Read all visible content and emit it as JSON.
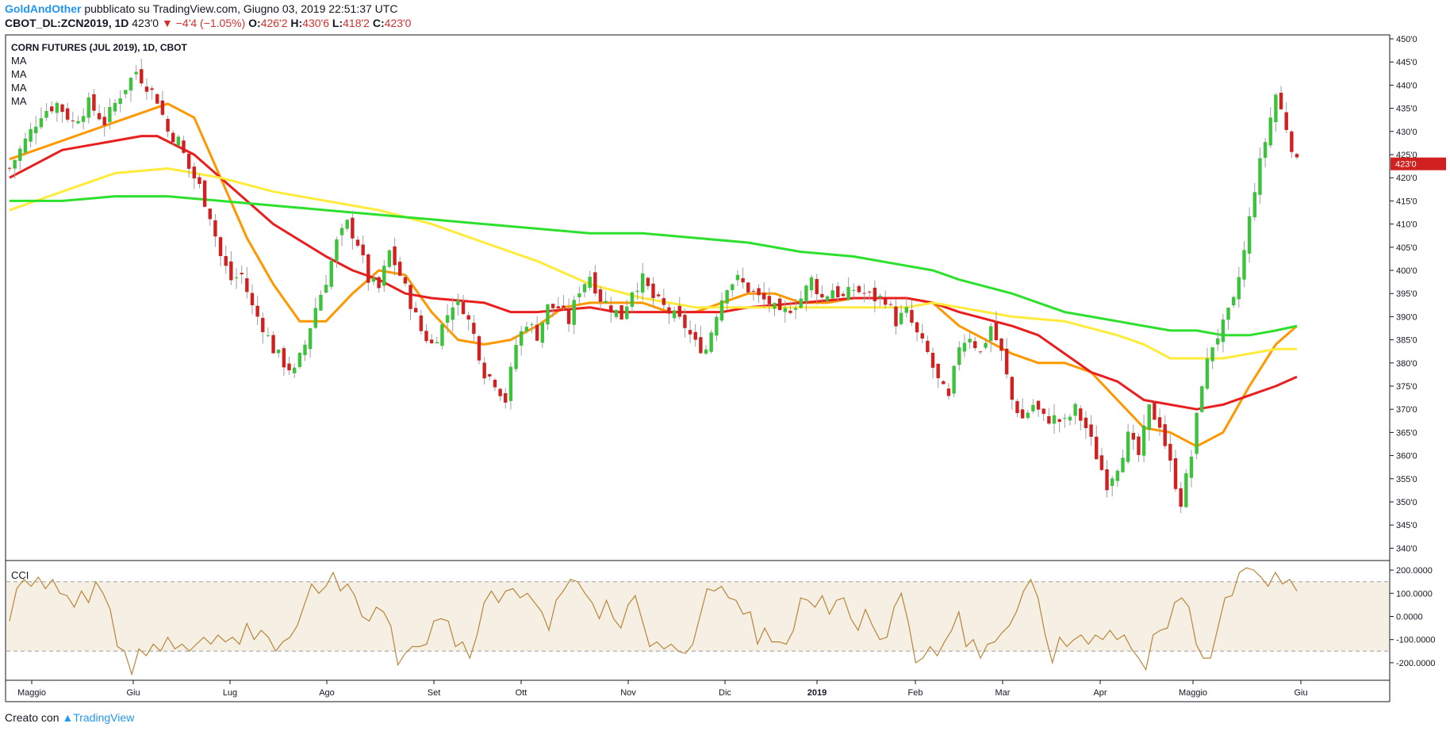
{
  "header": {
    "author": "GoldAndOther",
    "published": "pubblicato su TradingView.com, Giugno 03, 2019 22:51:37 UTC",
    "symbol": "CBOT_DL:ZCN2019, 1D",
    "last": "423'0",
    "arrow": "▼",
    "change": "−4'4 (−1.05%)",
    "o_label": "O:",
    "o_value": "426'2",
    "h_label": "H:",
    "h_value": "430'6",
    "l_label": "L:",
    "l_value": "418'2",
    "c_label": "C:",
    "c_value": "423'0"
  },
  "footer": {
    "made_with": "Creato con",
    "brand": "TradingView"
  },
  "chart_data": {
    "type": "candlestick",
    "title": "CORN FUTURES (JUL 2019), 1D, CBOT",
    "indicator_labels": [
      "MA",
      "MA",
      "MA",
      "MA"
    ],
    "price_axis": {
      "ticks": [
        "450'0",
        "445'0",
        "440'0",
        "435'0",
        "430'0",
        "425'0",
        "420'0",
        "415'0",
        "410'0",
        "405'0",
        "400'0",
        "395'0",
        "390'0",
        "385'0",
        "380'0",
        "375'0",
        "370'0",
        "365'0",
        "360'0",
        "355'0",
        "350'0",
        "345'0",
        "340'0"
      ],
      "range": [
        338,
        451
      ],
      "last_price_label": "423'0"
    },
    "time_axis": {
      "labels": [
        "Maggio",
        "Giu",
        "Lug",
        "Ago",
        "Set",
        "Ott",
        "Nov",
        "Dic",
        "2019",
        "Feb",
        "Mar",
        "Apr",
        "Maggio",
        "Giu"
      ],
      "bold": "2019"
    },
    "price_path": [
      [
        0,
        422
      ],
      [
        3,
        428
      ],
      [
        6,
        434
      ],
      [
        9,
        436
      ],
      [
        12,
        432
      ],
      [
        15,
        436
      ],
      [
        18,
        432
      ],
      [
        21,
        438
      ],
      [
        24,
        443
      ],
      [
        26,
        440
      ],
      [
        28,
        437
      ],
      [
        30,
        430
      ],
      [
        32,
        428
      ],
      [
        34,
        422
      ],
      [
        36,
        418
      ],
      [
        38,
        412
      ],
      [
        40,
        403
      ],
      [
        42,
        398
      ],
      [
        44,
        399
      ],
      [
        46,
        392
      ],
      [
        48,
        388
      ],
      [
        50,
        383
      ],
      [
        52,
        380
      ],
      [
        54,
        378
      ],
      [
        56,
        384
      ],
      [
        58,
        392
      ],
      [
        60,
        398
      ],
      [
        62,
        406
      ],
      [
        64,
        410
      ],
      [
        66,
        406
      ],
      [
        68,
        398
      ],
      [
        70,
        396
      ],
      [
        72,
        404
      ],
      [
        74,
        399
      ],
      [
        76,
        393
      ],
      [
        78,
        387
      ],
      [
        80,
        384
      ],
      [
        82,
        388
      ],
      [
        84,
        393
      ],
      [
        86,
        392
      ],
      [
        88,
        386
      ],
      [
        90,
        378
      ],
      [
        92,
        376
      ],
      [
        94,
        372
      ],
      [
        96,
        384
      ],
      [
        98,
        389
      ],
      [
        100,
        386
      ],
      [
        102,
        392
      ],
      [
        104,
        392
      ],
      [
        106,
        389
      ],
      [
        108,
        396
      ],
      [
        110,
        399
      ],
      [
        112,
        394
      ],
      [
        114,
        392
      ],
      [
        116,
        390
      ],
      [
        118,
        396
      ],
      [
        120,
        398
      ],
      [
        122,
        394
      ],
      [
        124,
        392
      ],
      [
        126,
        390
      ],
      [
        128,
        388
      ],
      [
        130,
        384
      ],
      [
        132,
        383
      ],
      [
        134,
        391
      ],
      [
        136,
        397
      ],
      [
        138,
        398
      ],
      [
        140,
        396
      ],
      [
        142,
        394
      ],
      [
        144,
        393
      ],
      [
        146,
        390
      ],
      [
        148,
        392
      ],
      [
        150,
        394
      ],
      [
        152,
        398
      ],
      [
        154,
        394
      ],
      [
        156,
        396
      ],
      [
        158,
        394
      ],
      [
        160,
        396
      ],
      [
        162,
        395
      ],
      [
        164,
        394
      ],
      [
        166,
        394
      ],
      [
        168,
        389
      ],
      [
        170,
        391
      ],
      [
        172,
        386
      ],
      [
        174,
        382
      ],
      [
        176,
        376
      ],
      [
        178,
        372
      ],
      [
        180,
        384
      ],
      [
        182,
        386
      ],
      [
        184,
        382
      ],
      [
        186,
        388
      ],
      [
        188,
        382
      ],
      [
        190,
        372
      ],
      [
        192,
        368
      ],
      [
        194,
        371
      ],
      [
        196,
        368
      ],
      [
        198,
        368
      ],
      [
        200,
        367
      ],
      [
        202,
        370
      ],
      [
        204,
        366
      ],
      [
        206,
        360
      ],
      [
        208,
        354
      ],
      [
        210,
        358
      ],
      [
        212,
        364
      ],
      [
        214,
        360
      ],
      [
        216,
        370
      ],
      [
        218,
        367
      ],
      [
        220,
        358
      ],
      [
        222,
        350
      ],
      [
        224,
        360
      ],
      [
        226,
        376
      ],
      [
        228,
        384
      ],
      [
        230,
        388
      ],
      [
        232,
        393
      ],
      [
        234,
        404
      ],
      [
        236,
        418
      ],
      [
        238,
        428
      ],
      [
        240,
        438
      ],
      [
        242,
        431
      ],
      [
        244,
        423
      ]
    ],
    "ma_series": [
      {
        "color": "#ff9800",
        "points": [
          [
            0,
            424
          ],
          [
            20,
            432
          ],
          [
            30,
            436
          ],
          [
            35,
            433
          ],
          [
            40,
            420
          ],
          [
            45,
            407
          ],
          [
            50,
            397
          ],
          [
            55,
            389
          ],
          [
            60,
            389
          ],
          [
            65,
            395
          ],
          [
            70,
            400
          ],
          [
            75,
            399
          ],
          [
            80,
            391
          ],
          [
            85,
            385
          ],
          [
            90,
            384
          ],
          [
            95,
            385
          ],
          [
            100,
            388
          ],
          [
            105,
            392
          ],
          [
            110,
            393
          ],
          [
            115,
            393
          ],
          [
            120,
            393
          ],
          [
            125,
            391
          ],
          [
            130,
            391
          ],
          [
            135,
            393
          ],
          [
            140,
            395
          ],
          [
            145,
            395
          ],
          [
            150,
            393
          ],
          [
            155,
            393
          ],
          [
            160,
            394
          ],
          [
            165,
            394
          ],
          [
            170,
            394
          ],
          [
            175,
            393
          ],
          [
            180,
            388
          ],
          [
            185,
            385
          ],
          [
            190,
            382
          ],
          [
            195,
            380
          ],
          [
            200,
            380
          ],
          [
            205,
            378
          ],
          [
            210,
            372
          ],
          [
            215,
            366
          ],
          [
            220,
            365
          ],
          [
            225,
            362
          ],
          [
            230,
            365
          ],
          [
            235,
            375
          ],
          [
            240,
            384
          ],
          [
            244,
            388
          ]
        ]
      },
      {
        "color": "#e91e1e",
        "points": [
          [
            0,
            420
          ],
          [
            10,
            426
          ],
          [
            20,
            428
          ],
          [
            25,
            429
          ],
          [
            28,
            429
          ],
          [
            35,
            425
          ],
          [
            40,
            420
          ],
          [
            50,
            410
          ],
          [
            60,
            403
          ],
          [
            65,
            400
          ],
          [
            70,
            398
          ],
          [
            75,
            395
          ],
          [
            80,
            394
          ],
          [
            90,
            393
          ],
          [
            95,
            391
          ],
          [
            100,
            391
          ],
          [
            110,
            392
          ],
          [
            115,
            391
          ],
          [
            120,
            391
          ],
          [
            125,
            391
          ],
          [
            130,
            391
          ],
          [
            135,
            391
          ],
          [
            140,
            392
          ],
          [
            150,
            393
          ],
          [
            160,
            394
          ],
          [
            170,
            394
          ],
          [
            175,
            393
          ],
          [
            180,
            391
          ],
          [
            190,
            388
          ],
          [
            195,
            386
          ],
          [
            200,
            382
          ],
          [
            205,
            378
          ],
          [
            210,
            376
          ],
          [
            215,
            372
          ],
          [
            220,
            371
          ],
          [
            225,
            370
          ],
          [
            230,
            371
          ],
          [
            235,
            373
          ],
          [
            240,
            375
          ],
          [
            244,
            377
          ]
        ]
      },
      {
        "color": "#ffeb3b",
        "points": [
          [
            0,
            413
          ],
          [
            10,
            417
          ],
          [
            20,
            421
          ],
          [
            30,
            422
          ],
          [
            40,
            420
          ],
          [
            50,
            417
          ],
          [
            60,
            415
          ],
          [
            70,
            413
          ],
          [
            80,
            410
          ],
          [
            90,
            406
          ],
          [
            100,
            402
          ],
          [
            110,
            397
          ],
          [
            120,
            394
          ],
          [
            130,
            392
          ],
          [
            140,
            392
          ],
          [
            150,
            392
          ],
          [
            160,
            392
          ],
          [
            170,
            392
          ],
          [
            175,
            393
          ],
          [
            180,
            392
          ],
          [
            190,
            390
          ],
          [
            200,
            389
          ],
          [
            210,
            386
          ],
          [
            215,
            384
          ],
          [
            220,
            381
          ],
          [
            225,
            381
          ],
          [
            230,
            381
          ],
          [
            235,
            382
          ],
          [
            240,
            383
          ],
          [
            244,
            383
          ]
        ]
      },
      {
        "color": "#2ee02e",
        "points": [
          [
            0,
            415
          ],
          [
            10,
            415
          ],
          [
            20,
            416
          ],
          [
            30,
            416
          ],
          [
            40,
            415
          ],
          [
            50,
            414
          ],
          [
            60,
            413
          ],
          [
            70,
            412
          ],
          [
            80,
            411
          ],
          [
            90,
            410
          ],
          [
            100,
            409
          ],
          [
            110,
            408
          ],
          [
            120,
            408
          ],
          [
            130,
            407
          ],
          [
            140,
            406
          ],
          [
            150,
            404
          ],
          [
            160,
            403
          ],
          [
            170,
            401
          ],
          [
            175,
            400
          ],
          [
            180,
            398
          ],
          [
            190,
            395
          ],
          [
            195,
            393
          ],
          [
            200,
            391
          ],
          [
            205,
            390
          ],
          [
            210,
            389
          ],
          [
            215,
            388
          ],
          [
            220,
            387
          ],
          [
            225,
            387
          ],
          [
            230,
            386
          ],
          [
            235,
            386
          ],
          [
            240,
            387
          ],
          [
            244,
            388
          ]
        ]
      }
    ],
    "cci": {
      "label": "CCI",
      "ticks": [
        "200.0000",
        "100.0000",
        "0.0000",
        "-100.0000",
        "-200.0000"
      ],
      "range": [
        -260,
        240
      ],
      "band": [
        -150,
        150
      ],
      "values": [
        -20,
        120,
        160,
        130,
        170,
        120,
        160,
        100,
        90,
        40,
        110,
        60,
        150,
        100,
        30,
        -130,
        -150,
        -250,
        -140,
        -170,
        -120,
        -150,
        -90,
        -140,
        -120,
        -150,
        -120,
        -90,
        -120,
        -80,
        -110,
        -90,
        -120,
        -30,
        -100,
        -60,
        -90,
        -150,
        -110,
        -90,
        -40,
        50,
        140,
        100,
        130,
        190,
        110,
        140,
        90,
        0,
        -20,
        40,
        20,
        -40,
        -210,
        -160,
        -130,
        -130,
        -120,
        -20,
        -10,
        -20,
        -130,
        -110,
        -180,
        -80,
        60,
        110,
        60,
        110,
        120,
        80,
        100,
        60,
        20,
        -60,
        70,
        110,
        160,
        150,
        100,
        60,
        -10,
        70,
        -10,
        -50,
        50,
        90,
        -20,
        -130,
        -110,
        -140,
        -120,
        -150,
        -160,
        -120,
        0,
        120,
        110,
        130,
        80,
        70,
        10,
        20,
        -120,
        -50,
        -110,
        -110,
        -120,
        -60,
        80,
        70,
        40,
        90,
        10,
        70,
        80,
        -10,
        -60,
        30,
        -40,
        -100,
        -90,
        40,
        100,
        -30,
        -200,
        -180,
        -130,
        -170,
        -110,
        -60,
        20,
        -130,
        -100,
        -180,
        -120,
        -110,
        -70,
        -40,
        20,
        110,
        160,
        80,
        -80,
        -200,
        -90,
        -130,
        -100,
        -80,
        -120,
        -80,
        -100,
        -60,
        -100,
        -80,
        -140,
        -180,
        -230,
        -80,
        -60,
        -50,
        60,
        80,
        40,
        -120,
        -180,
        -180,
        -50,
        80,
        90,
        190,
        210,
        200,
        170,
        130,
        190,
        140,
        160,
        110
      ]
    }
  }
}
